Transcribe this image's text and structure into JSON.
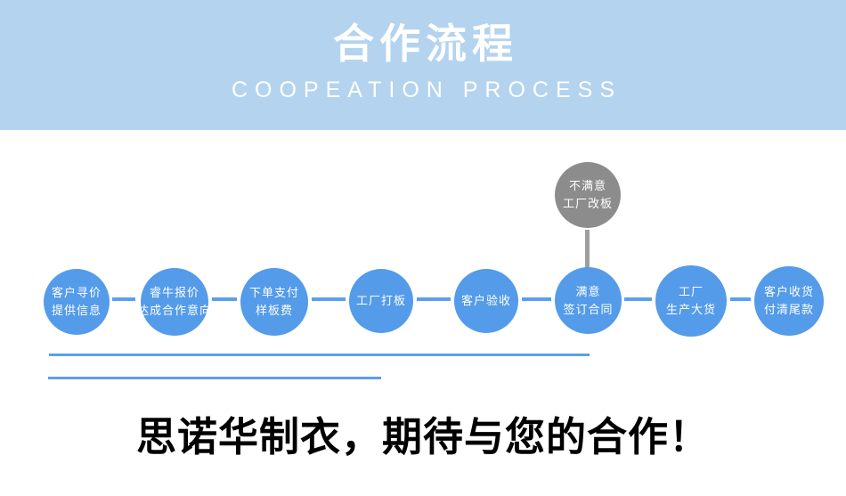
{
  "banner": {
    "title": "合作流程",
    "subtitle": "COOPEATION PROCESS",
    "bg_color": "#b4d3ee",
    "text_color": "#ffffff"
  },
  "flow": {
    "circle_color": "#549bea",
    "connector_color": "#5b9ff0",
    "steps": [
      {
        "lines": [
          "客户寻价",
          "提供信息"
        ]
      },
      {
        "lines": [
          "睿牛报价",
          "达成合作意向"
        ]
      },
      {
        "lines": [
          "下单支付",
          "样板费"
        ]
      },
      {
        "lines": [
          "工厂打板"
        ]
      },
      {
        "lines": [
          "客户验收"
        ]
      },
      {
        "lines": [
          "满意",
          "签订合同"
        ]
      },
      {
        "lines": [
          "工厂",
          "生产大货"
        ]
      },
      {
        "lines": [
          "客户收货",
          "付清尾款"
        ]
      }
    ],
    "branch": {
      "lines": [
        "不满意",
        "工厂改板"
      ],
      "circle_color": "#8c8c8c",
      "line_color": "#9e9e9e"
    }
  },
  "dividers": {
    "color": "#5b9ef0"
  },
  "footer": {
    "headline": "思诺华制衣，期待与您的合作！",
    "color": "#000000"
  }
}
